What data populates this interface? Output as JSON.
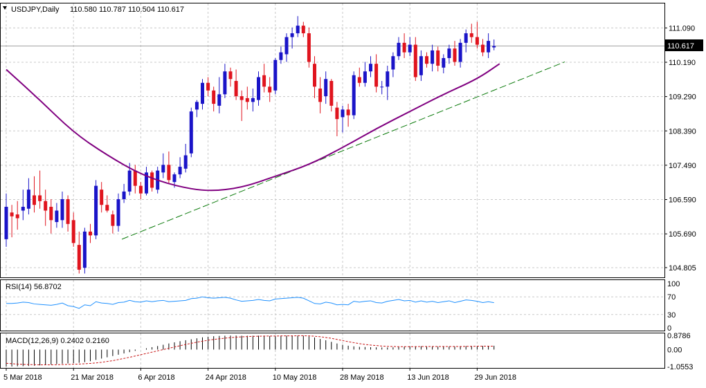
{
  "chart_data": [
    {
      "type": "candlestick",
      "symbol_line": "USDJPY,Daily",
      "ohlc_text": "110.580 110.787 110.504 110.617",
      "last_price": "110.617",
      "price_ticks": [
        {
          "label": "111.090",
          "value": 111.09
        },
        {
          "label": "110.190",
          "value": 110.19
        },
        {
          "label": "109.290",
          "value": 109.29
        },
        {
          "label": "108.390",
          "value": 108.39
        },
        {
          "label": "107.490",
          "value": 107.49
        },
        {
          "label": "106.590",
          "value": 106.59
        },
        {
          "label": "105.690",
          "value": 105.69
        },
        {
          "label": "104.805",
          "value": 104.805
        }
      ],
      "ylim": [
        104.55,
        111.75
      ],
      "date_labels": [
        {
          "label": "5 Mar 2018",
          "bar": 0
        },
        {
          "label": "21 Mar 2018",
          "bar": 12
        },
        {
          "label": "6 Apr 2018",
          "bar": 24
        },
        {
          "label": "24 Apr 2018",
          "bar": 36
        },
        {
          "label": "10 May 2018",
          "bar": 48
        },
        {
          "label": "28 May 2018",
          "bar": 60
        },
        {
          "label": "13 Jun 2018",
          "bar": 72
        },
        {
          "label": "29 Jun 2018",
          "bar": 84
        }
      ],
      "candles": [
        [
          105.55,
          106.75,
          105.35,
          106.4
        ],
        [
          106.25,
          106.45,
          105.6,
          106.15
        ],
        [
          106.2,
          106.55,
          105.8,
          106.1
        ],
        [
          106.3,
          106.85,
          106.05,
          106.4
        ],
        [
          106.35,
          107.15,
          106.2,
          106.85
        ],
        [
          106.7,
          107.2,
          106.25,
          106.45
        ],
        [
          106.7,
          107.35,
          106.35,
          106.55
        ],
        [
          106.55,
          106.85,
          105.9,
          106.3
        ],
        [
          106.4,
          106.6,
          105.7,
          106.05
        ],
        [
          106.0,
          106.5,
          105.85,
          106.3
        ],
        [
          106.05,
          106.8,
          105.85,
          106.6
        ],
        [
          106.6,
          106.7,
          105.75,
          105.95
        ],
        [
          106.05,
          106.25,
          105.35,
          105.45
        ],
        [
          105.4,
          105.75,
          104.65,
          104.75
        ],
        [
          104.8,
          105.85,
          104.65,
          105.75
        ],
        [
          105.75,
          105.95,
          105.45,
          105.65
        ],
        [
          105.65,
          107.1,
          105.55,
          106.95
        ],
        [
          106.85,
          107.05,
          106.25,
          106.45
        ],
        [
          106.45,
          106.7,
          106.25,
          106.3
        ],
        [
          106.2,
          106.3,
          105.7,
          105.9
        ],
        [
          105.9,
          106.75,
          105.75,
          106.6
        ],
        [
          106.6,
          107.0,
          106.5,
          106.8
        ],
        [
          106.8,
          107.55,
          106.7,
          107.35
        ],
        [
          107.35,
          107.5,
          106.75,
          106.95
        ],
        [
          106.95,
          107.05,
          106.6,
          106.75
        ],
        [
          106.75,
          107.45,
          106.7,
          107.3
        ],
        [
          107.3,
          107.35,
          106.8,
          106.9
        ],
        [
          106.85,
          107.45,
          106.75,
          107.35
        ],
        [
          107.3,
          107.8,
          107.15,
          107.5
        ],
        [
          107.5,
          107.85,
          107.0,
          107.1
        ],
        [
          107.05,
          107.3,
          106.9,
          107.25
        ],
        [
          107.25,
          107.7,
          107.15,
          107.45
        ],
        [
          107.4,
          108.05,
          107.3,
          107.75
        ],
        [
          107.8,
          109.0,
          107.7,
          108.9
        ],
        [
          108.95,
          109.2,
          108.75,
          109.15
        ],
        [
          109.1,
          109.75,
          108.95,
          109.65
        ],
        [
          109.65,
          109.8,
          109.3,
          109.45
        ],
        [
          109.45,
          109.55,
          108.9,
          109.1
        ],
        [
          109.05,
          109.8,
          108.85,
          109.35
        ],
        [
          109.35,
          110.15,
          109.25,
          109.95
        ],
        [
          109.95,
          110.05,
          109.55,
          109.75
        ],
        [
          109.7,
          110.0,
          109.2,
          109.3
        ],
        [
          109.3,
          109.45,
          108.65,
          109.2
        ],
        [
          109.25,
          109.55,
          108.95,
          109.15
        ],
        [
          109.15,
          109.5,
          108.9,
          109.25
        ],
        [
          109.2,
          109.95,
          109.05,
          109.8
        ],
        [
          109.85,
          110.15,
          109.4,
          109.55
        ],
        [
          109.55,
          109.8,
          109.15,
          109.4
        ],
        [
          109.45,
          110.3,
          109.35,
          110.25
        ],
        [
          110.25,
          110.6,
          110.15,
          110.45
        ],
        [
          110.4,
          110.95,
          110.2,
          110.85
        ],
        [
          110.85,
          111.1,
          110.55,
          110.95
        ],
        [
          110.95,
          111.4,
          110.85,
          111.15
        ],
        [
          111.15,
          111.25,
          110.85,
          110.95
        ],
        [
          110.95,
          111.1,
          110.05,
          110.2
        ],
        [
          110.15,
          110.35,
          109.25,
          109.55
        ],
        [
          109.5,
          109.8,
          108.85,
          109.15
        ],
        [
          109.3,
          109.95,
          109.1,
          109.75
        ],
        [
          109.7,
          109.75,
          108.9,
          109.05
        ],
        [
          109.0,
          109.15,
          108.25,
          108.7
        ],
        [
          108.75,
          109.05,
          108.35,
          108.95
        ],
        [
          108.95,
          109.1,
          108.5,
          108.8
        ],
        [
          108.8,
          109.95,
          108.7,
          109.85
        ],
        [
          109.8,
          110.05,
          109.55,
          109.65
        ],
        [
          109.65,
          110.2,
          109.55,
          109.95
        ],
        [
          109.95,
          110.35,
          109.8,
          110.15
        ],
        [
          110.15,
          110.4,
          109.4,
          109.55
        ],
        [
          109.55,
          109.7,
          109.35,
          109.55
        ],
        [
          109.55,
          110.1,
          109.2,
          109.95
        ],
        [
          110.0,
          110.45,
          109.8,
          110.35
        ],
        [
          110.35,
          110.85,
          110.25,
          110.7
        ],
        [
          110.7,
          110.95,
          110.3,
          110.45
        ],
        [
          110.45,
          110.85,
          110.35,
          110.65
        ],
        [
          110.65,
          110.85,
          109.7,
          109.8
        ],
        [
          109.85,
          110.5,
          109.7,
          110.35
        ],
        [
          110.35,
          110.45,
          110.05,
          110.15
        ],
        [
          110.15,
          110.65,
          109.95,
          110.5
        ],
        [
          110.5,
          110.6,
          109.95,
          110.1
        ],
        [
          110.05,
          110.4,
          109.9,
          110.3
        ],
        [
          110.3,
          110.65,
          110.15,
          110.55
        ],
        [
          110.55,
          110.75,
          110.1,
          110.2
        ],
        [
          110.2,
          110.8,
          110.05,
          110.7
        ],
        [
          110.7,
          111.05,
          110.45,
          110.95
        ],
        [
          110.95,
          111.2,
          110.7,
          110.85
        ],
        [
          110.85,
          111.25,
          110.55,
          110.65
        ],
        [
          110.65,
          110.8,
          110.35,
          110.45
        ],
        [
          110.45,
          110.95,
          110.3,
          110.75
        ],
        [
          110.58,
          110.787,
          110.504,
          110.617
        ]
      ],
      "sma": [
        [
          0,
          110.0
        ],
        [
          6,
          109.2
        ],
        [
          12,
          108.35
        ],
        [
          18,
          107.75
        ],
        [
          24,
          107.25
        ],
        [
          30,
          106.95
        ],
        [
          36,
          106.8
        ],
        [
          42,
          106.9
        ],
        [
          48,
          107.2
        ],
        [
          54,
          107.5
        ],
        [
          60,
          107.95
        ],
        [
          66,
          108.45
        ],
        [
          72,
          108.9
        ],
        [
          78,
          109.35
        ],
        [
          84,
          109.75
        ],
        [
          88,
          110.15
        ]
      ],
      "trendline": [
        [
          21,
          105.55
        ],
        [
          100,
          110.2
        ]
      ]
    },
    {
      "type": "line",
      "label": "RSI(14) 56.8702",
      "levels": [
        {
          "label": "100",
          "value": 100
        },
        {
          "label": "70",
          "value": 70
        },
        {
          "label": "30",
          "value": 30
        },
        {
          "label": "0",
          "value": 0
        }
      ],
      "ylim": [
        0,
        100
      ],
      "values": [
        55,
        55,
        56,
        58,
        57,
        54,
        53,
        52,
        51,
        53,
        56,
        50,
        48,
        44,
        52,
        50,
        59,
        56,
        55,
        53,
        57,
        58,
        62,
        59,
        58,
        61,
        59,
        61,
        62,
        59,
        60,
        61,
        62,
        66,
        67,
        70,
        68,
        67,
        68,
        69,
        67,
        63,
        60,
        61,
        62,
        64,
        62,
        61,
        65,
        66,
        67,
        68,
        69,
        67,
        61,
        55,
        54,
        58,
        56,
        52,
        53,
        52,
        60,
        58,
        60,
        61,
        57,
        56,
        60,
        62,
        64,
        61,
        62,
        58,
        61,
        58,
        60,
        57,
        59,
        61,
        57,
        60,
        63,
        62,
        60,
        57,
        59,
        56.87
      ]
    },
    {
      "type": "bar",
      "label": "MACD(12,26,9) 0.2402 0.2160",
      "levels": [
        {
          "label": "0.8786",
          "value": 0.8786
        },
        {
          "label": "0.00",
          "value": 0.0
        },
        {
          "label": "-1.0553",
          "value": -1.0553
        }
      ],
      "ylim": [
        -1.0553,
        0.8786
      ],
      "histogram": [
        -1.05,
        -1.05,
        -1.04,
        -1.03,
        -1.02,
        -1.0,
        -0.98,
        -0.95,
        -0.93,
        -0.9,
        -0.88,
        -0.86,
        -0.84,
        -0.82,
        -0.78,
        -0.72,
        -0.64,
        -0.56,
        -0.48,
        -0.4,
        -0.32,
        -0.24,
        -0.16,
        -0.08,
        0.0,
        0.08,
        0.15,
        0.22,
        0.3,
        0.38,
        0.45,
        0.52,
        0.58,
        0.64,
        0.7,
        0.76,
        0.8,
        0.83,
        0.85,
        0.86,
        0.87,
        0.87,
        0.86,
        0.86,
        0.86,
        0.86,
        0.85,
        0.84,
        0.84,
        0.85,
        0.86,
        0.87,
        0.87,
        0.86,
        0.82,
        0.75,
        0.66,
        0.58,
        0.48,
        0.38,
        0.3,
        0.24,
        0.2,
        0.17,
        0.16,
        0.15,
        0.14,
        0.13,
        0.13,
        0.14,
        0.16,
        0.18,
        0.2,
        0.2,
        0.2,
        0.19,
        0.19,
        0.18,
        0.18,
        0.19,
        0.19,
        0.2,
        0.21,
        0.22,
        0.22,
        0.22,
        0.23,
        0.24
      ],
      "signal": [
        -0.85,
        -0.88,
        -0.9,
        -0.92,
        -0.93,
        -0.94,
        -0.95,
        -0.95,
        -0.95,
        -0.94,
        -0.93,
        -0.92,
        -0.91,
        -0.9,
        -0.88,
        -0.86,
        -0.83,
        -0.79,
        -0.74,
        -0.69,
        -0.62,
        -0.55,
        -0.48,
        -0.4,
        -0.32,
        -0.24,
        -0.16,
        -0.08,
        0.0,
        0.08,
        0.16,
        0.24,
        0.32,
        0.39,
        0.46,
        0.52,
        0.58,
        0.63,
        0.67,
        0.71,
        0.74,
        0.77,
        0.79,
        0.81,
        0.82,
        0.83,
        0.84,
        0.84,
        0.84,
        0.85,
        0.85,
        0.85,
        0.86,
        0.86,
        0.85,
        0.83,
        0.8,
        0.75,
        0.7,
        0.63,
        0.56,
        0.49,
        0.43,
        0.37,
        0.32,
        0.28,
        0.25,
        0.22,
        0.2,
        0.19,
        0.18,
        0.18,
        0.18,
        0.18,
        0.19,
        0.19,
        0.19,
        0.19,
        0.19,
        0.19,
        0.19,
        0.19,
        0.2,
        0.2,
        0.21,
        0.21,
        0.21,
        0.216
      ]
    }
  ],
  "colors": {
    "bull": "#1a14c8",
    "bear": "#e0141e",
    "sma": "#800080",
    "trendline": "#0a7a0a",
    "rsi": "#1e90ff",
    "macd_hist": "#000000",
    "macd_signal": "#c81414",
    "grid": "#c8c8c8",
    "last_price_bg": "#000000",
    "last_price_text": "#ffffff"
  },
  "icons": {
    "symbol_dropdown": "triangle-down-icon"
  }
}
